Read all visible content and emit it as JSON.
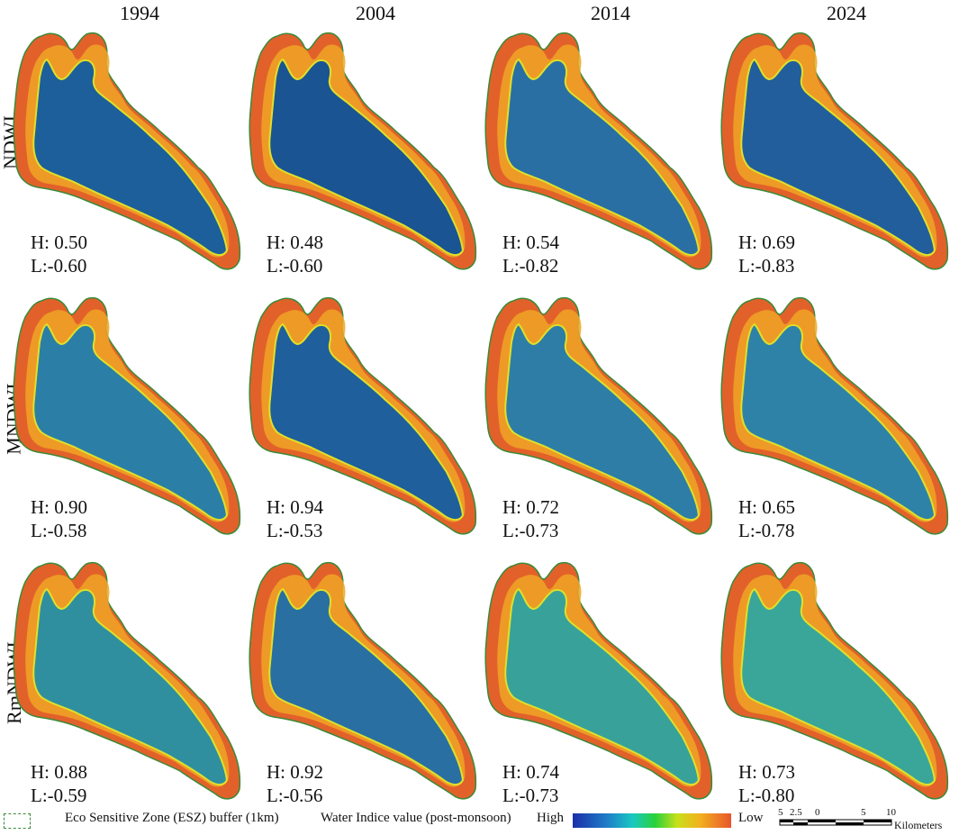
{
  "years": [
    "1994",
    "2004",
    "2014",
    "2024"
  ],
  "indices": [
    "NDWI",
    "MNDWI",
    "RmNDWI"
  ],
  "panels": [
    [
      {
        "high": "H: 0.50",
        "low": "L:-0.60",
        "water": "#1d5f9a"
      },
      {
        "high": "H: 0.48",
        "low": "L:-0.60",
        "water": "#1a5492"
      },
      {
        "high": "H: 0.54",
        "low": "L:-0.82",
        "water": "#2a6fa4"
      },
      {
        "high": "H: 0.69",
        "low": "L:-0.83",
        "water": "#235e9c"
      }
    ],
    [
      {
        "high": "H: 0.90",
        "low": "L:-0.58",
        "water": "#2b7fa6"
      },
      {
        "high": "H: 0.94",
        "low": "L:-0.53",
        "water": "#1f5f9b"
      },
      {
        "high": "H: 0.72",
        "low": "L:-0.73",
        "water": "#2d7da6"
      },
      {
        "high": "H: 0.65",
        "low": "L:-0.78",
        "water": "#2f82a7"
      }
    ],
    [
      {
        "high": "H: 0.88",
        "low": "L:-0.59",
        "water": "#2f8f9f"
      },
      {
        "high": "H: 0.92",
        "low": "L:-0.56",
        "water": "#2a6fa2"
      },
      {
        "high": "H: 0.74",
        "low": "L:-0.73",
        "water": "#38a29a"
      },
      {
        "high": "H: 0.73",
        "low": "L:-0.80",
        "water": "#3aa69a"
      }
    ]
  ],
  "legend": {
    "esz_label": "Eco Sensitive Zone (ESZ) buffer (1km)",
    "water_label": "Water Indice value (post-monsoon)",
    "high": "High",
    "low": "Low"
  },
  "scalebar": {
    "ticks": [
      "5",
      "2.5",
      "0",
      "5",
      "10"
    ],
    "unit": "Kilometers"
  },
  "colors": {
    "land_outer": "#e2612a",
    "land_inner": "#f0a526",
    "land_edge": "#dfe02a",
    "esz_border": "#3a8a3a"
  }
}
